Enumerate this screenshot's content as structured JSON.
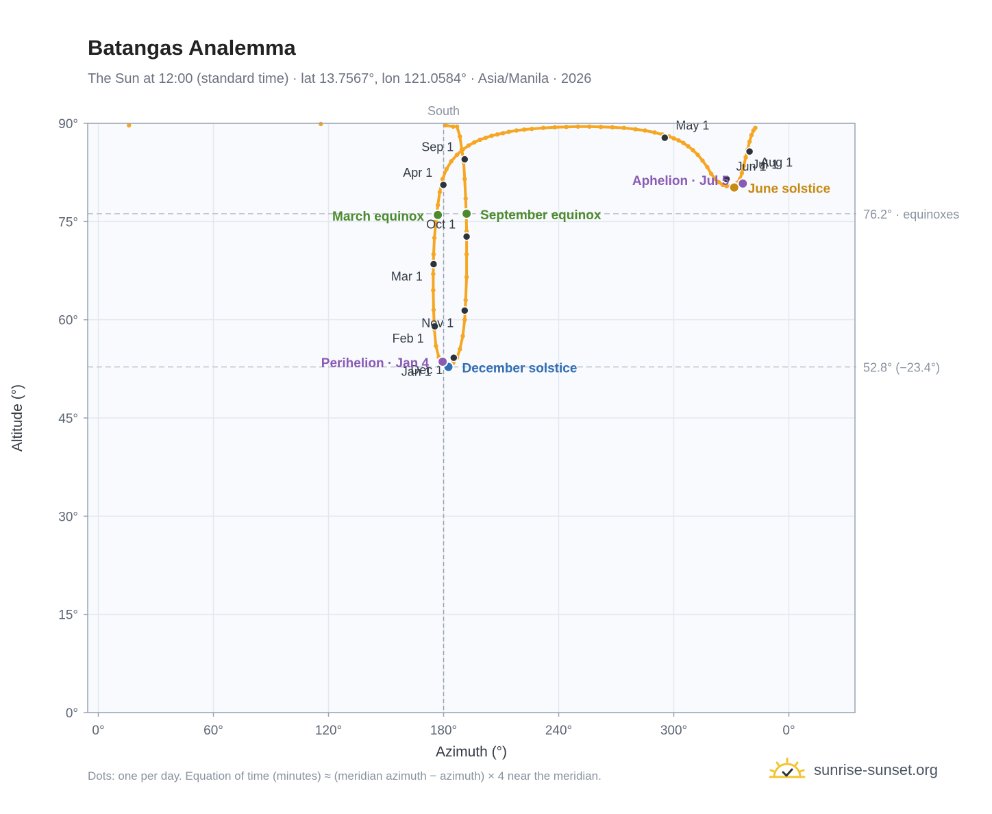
{
  "title": "Batangas Analemma",
  "subtitle": "The Sun at 12:00 (standard time) · lat 13.7567°, lon 121.0584° · Asia/Manila · 2026",
  "footnote": "Dots: one per day. Equation of time (minutes) ≈ (meridian azimuth − azimuth) × 4 near the meridian.",
  "brand": "sunrise-sunset.org",
  "colors": {
    "curve": "#f5a623",
    "marker": "#2d333b",
    "equinox": "#4d8a2e",
    "june_solstice": "#c78a12",
    "december_solstice": "#2f6db5",
    "apsis": "#8a5bb5",
    "plot_bg": "#f8fafd",
    "grid": "#e3e8ef",
    "reference": "#b8c0cc"
  },
  "chart_data": {
    "type": "scatter",
    "xlabel": "Azimuth (°)",
    "ylabel": "Altitude (°)",
    "x_ticks": [
      "0°",
      "60°",
      "120°",
      "180°",
      "240°",
      "300°",
      "0°"
    ],
    "y_ticks": [
      "0°",
      "15°",
      "30°",
      "45°",
      "60°",
      "75°",
      "90°"
    ],
    "xlim": [
      0,
      400
    ],
    "ylim": [
      0,
      90
    ],
    "meridian": {
      "azimuth": 180,
      "label": "South"
    },
    "reference_lines": [
      {
        "altitude": 76.2,
        "label": "76.2° · equinoxes"
      },
      {
        "altitude": 52.8,
        "label": "52.8° (−23.4°)"
      }
    ],
    "series": [
      {
        "points": [
          [
            179.5,
            53.3
          ],
          [
            177.5,
            54.3
          ],
          [
            176.0,
            56.0
          ],
          [
            175.2,
            58.5
          ],
          [
            174.8,
            61.5
          ],
          [
            174.6,
            64.5
          ],
          [
            174.6,
            67.0
          ],
          [
            174.8,
            70.0
          ],
          [
            175.2,
            72.5
          ],
          [
            176.0,
            75.0
          ],
          [
            177.0,
            77.5
          ],
          [
            178.0,
            79.5
          ],
          [
            179.5,
            81.5
          ],
          [
            181.5,
            83.0
          ],
          [
            184.0,
            84.2
          ],
          [
            187.0,
            85.2
          ],
          [
            190.0,
            86.0
          ],
          [
            193.0,
            86.6
          ],
          [
            196.0,
            87.1
          ],
          [
            199.0,
            87.5
          ],
          [
            202.0,
            87.8
          ],
          [
            205.0,
            88.1
          ],
          [
            208.0,
            88.3
          ],
          [
            211.0,
            88.5
          ],
          [
            214.0,
            88.7
          ],
          [
            218.0,
            88.9
          ],
          [
            222.0,
            89.05
          ],
          [
            226.0,
            89.15
          ],
          [
            232.0,
            89.3
          ],
          [
            238.0,
            89.4
          ],
          [
            244.0,
            89.45
          ],
          [
            250.0,
            89.5
          ],
          [
            256.0,
            89.5
          ],
          [
            262.0,
            89.45
          ],
          [
            268.0,
            89.4
          ],
          [
            274.0,
            89.3
          ],
          [
            280.0,
            89.1
          ],
          [
            285.0,
            88.9
          ],
          [
            290.0,
            88.6
          ],
          [
            294.0,
            88.3
          ],
          [
            297.5,
            88.0
          ],
          [
            300.0,
            87.7
          ],
          [
            302.5,
            87.4
          ],
          [
            305.0,
            87.0
          ],
          [
            307.5,
            86.5
          ],
          [
            310.0,
            85.9
          ],
          [
            312.5,
            85.2
          ],
          [
            315.0,
            84.3
          ],
          [
            317.5,
            83.3
          ],
          [
            319.5,
            82.3
          ],
          [
            321.5,
            81.5
          ],
          [
            323.5,
            81.0
          ],
          [
            325.5,
            80.6
          ],
          [
            327.5,
            80.4
          ],
          [
            329.5,
            80.4
          ],
          [
            331.5,
            80.6
          ],
          [
            333.0,
            80.9
          ],
          [
            334.5,
            81.5
          ],
          [
            335.5,
            82.4
          ],
          [
            336.5,
            83.5
          ],
          [
            337.5,
            84.8
          ],
          [
            338.5,
            86.0
          ],
          [
            339.5,
            87.2
          ],
          [
            340.5,
            88.2
          ],
          [
            341.5,
            88.9
          ],
          [
            342.5,
            89.3
          ],
          [
            187.0,
            89.5
          ],
          [
            188.5,
            88.0
          ],
          [
            189.5,
            86.0
          ],
          [
            190.5,
            84.0
          ],
          [
            191.0,
            81.5
          ],
          [
            191.5,
            78.5
          ],
          [
            191.8,
            76.2
          ],
          [
            192.0,
            73.5
          ],
          [
            192.0,
            70.0
          ],
          [
            192.0,
            66.5
          ],
          [
            191.5,
            63.0
          ],
          [
            191.0,
            60.0
          ],
          [
            190.0,
            57.5
          ],
          [
            188.5,
            55.5
          ],
          [
            187.0,
            54.2
          ],
          [
            185.0,
            53.4
          ],
          [
            183.0,
            52.9
          ],
          [
            181.5,
            53.0
          ],
          [
            180.0,
            53.2
          ],
          [
            16,
            89.7
          ],
          [
            116,
            89.9
          ],
          [
            181,
            89.7
          ],
          [
            185,
            89.5
          ]
        ]
      }
    ],
    "month_markers": [
      {
        "label": "Jan 1",
        "az": 179.4,
        "alt": 53.3
      },
      {
        "label": "Feb 1",
        "az": 175.4,
        "alt": 59.0
      },
      {
        "label": "Mar 1",
        "az": 174.8,
        "alt": 68.5
      },
      {
        "label": "Apr 1",
        "az": 179.9,
        "alt": 80.6
      },
      {
        "label": "May 1",
        "az": 295.3,
        "alt": 87.8
      },
      {
        "label": "Jun 1",
        "az": 327.5,
        "alt": 81.5
      },
      {
        "label": "Jul 1",
        "az": 336.0,
        "alt": 80.8
      },
      {
        "label": "Aug 1",
        "az": 339.5,
        "alt": 85.7
      },
      {
        "label": "Sep 1",
        "az": 191.0,
        "alt": 84.5
      },
      {
        "label": "Oct 1",
        "az": 192.0,
        "alt": 72.7
      },
      {
        "label": "Nov 1",
        "az": 191.0,
        "alt": 61.4
      },
      {
        "label": "Dec 1",
        "az": 185.3,
        "alt": 54.2
      }
    ],
    "events": [
      {
        "label": "March equinox",
        "az": 177.0,
        "alt": 76.0,
        "kind": "equinox"
      },
      {
        "label": "September equinox",
        "az": 192.0,
        "alt": 76.2,
        "kind": "equinox"
      },
      {
        "label": "June solstice",
        "az": 331.5,
        "alt": 80.2,
        "kind": "june_solstice"
      },
      {
        "label": "December solstice",
        "az": 182.5,
        "alt": 52.8,
        "kind": "december_solstice"
      },
      {
        "label": "Perihelion · Jan 4",
        "az": 179.5,
        "alt": 53.6,
        "kind": "apsis"
      },
      {
        "label": "Aphelion · Jul 5",
        "az": 336.0,
        "alt": 80.8,
        "kind": "apsis"
      }
    ]
  }
}
